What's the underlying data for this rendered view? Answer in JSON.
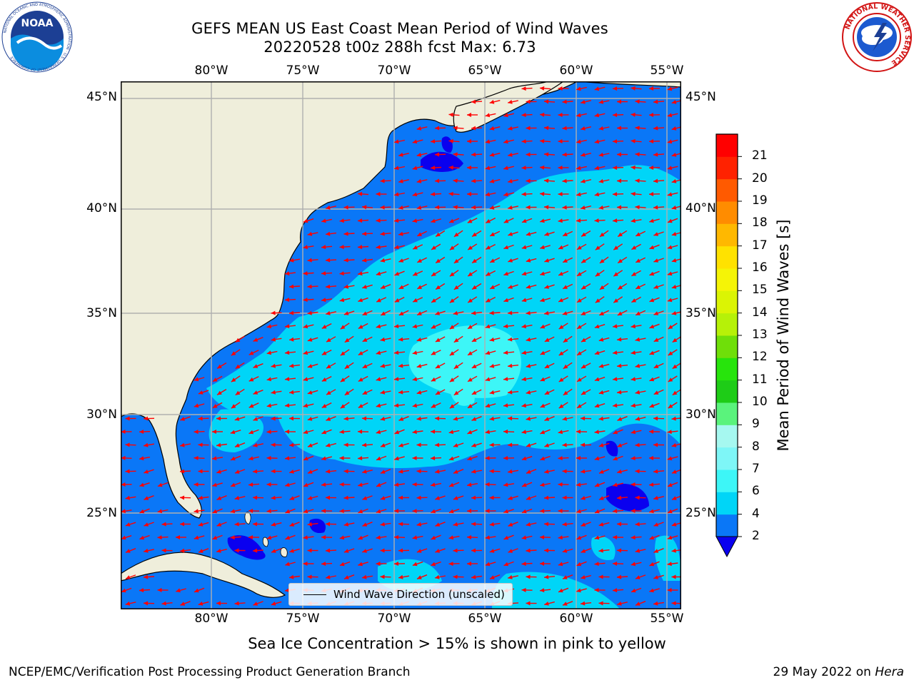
{
  "header": {
    "title_line1": "GEFS MEAN US East Coast Mean Period of Wind Waves",
    "title_line2": "20220528 t00z 288h fcst   Max: 6.73"
  },
  "logos": {
    "left": {
      "icon": "noaa-logo-icon",
      "text": "NOAA",
      "ring_text": "NATIONAL OCEANIC AND ATMOSPHERIC ADMINISTRATION · U.S. DEPARTMENT OF COMMERCE"
    },
    "right": {
      "icon": "nws-logo-icon",
      "ring_text": "NATIONAL WEATHER SERVICE"
    }
  },
  "map": {
    "lon_labels": [
      "80°W",
      "75°W",
      "70°W",
      "65°W",
      "60°W",
      "55°W"
    ],
    "lat_labels": [
      "45°N",
      "40°N",
      "35°N",
      "30°N",
      "25°N"
    ],
    "extent": {
      "lon_min": -85,
      "lon_max": -54.3,
      "lat_min": 20.5,
      "lat_max": 45.8
    },
    "gridlines": true,
    "land_color": "#efeedb",
    "grid_color": "#b0b0b0",
    "vector_color": "#ff0000",
    "legend_label": "Wind Wave Direction (unscaled)"
  },
  "colorbar": {
    "title": "Mean Period of Wind Waves [s]",
    "ticks": [
      "2",
      "4",
      "6",
      "7",
      "8",
      "9",
      "10",
      "11",
      "12",
      "13",
      "14",
      "15",
      "16",
      "17",
      "18",
      "19",
      "20",
      "21"
    ],
    "colors": [
      "#0a77f7",
      "#00d5f7",
      "#3df6f7",
      "#7ef6f7",
      "#a6f8f0",
      "#5af37c",
      "#1ecc17",
      "#27e40c",
      "#6fdf09",
      "#b6f108",
      "#dbf404",
      "#f5f406",
      "#ffe200",
      "#ffb800",
      "#ff8c00",
      "#ff5a00",
      "#ff2200",
      "#ff0000"
    ],
    "under_color": "#0a00ef",
    "extend": "min"
  },
  "notes": {
    "ice": "Sea Ice Concentration > 15% is shown in pink to yellow"
  },
  "footer": {
    "left": "NCEP/EMC/Verification Post Processing Product Generation Branch",
    "right_prefix": "29 May 2022 on",
    "right_host": "Hera"
  }
}
